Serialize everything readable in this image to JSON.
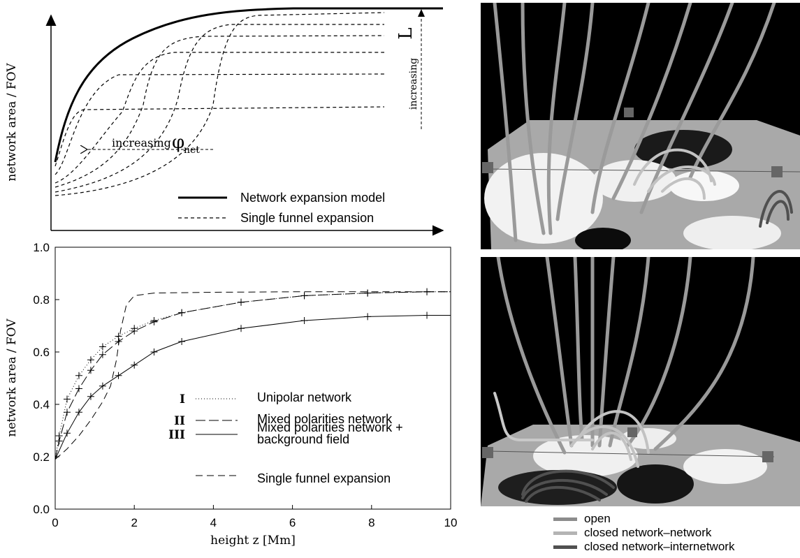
{
  "chart_data": [
    {
      "type": "line",
      "title": "",
      "xlabel": "",
      "ylabel": "network area / FOV",
      "annotations": [
        "L",
        "increasing",
        "increasing",
        "φ",
        "net"
      ],
      "legend_position": "bottom-right",
      "series": [
        {
          "name": "Network expansion model",
          "style": "solid-thick"
        },
        {
          "name": "Single funnel expansion",
          "style": "dashed"
        }
      ]
    },
    {
      "type": "line",
      "title": "",
      "xlabel": "height z [Mm]",
      "ylabel": "network area / FOV",
      "xlim": [
        0,
        10
      ],
      "ylim": [
        0.0,
        1.0
      ],
      "xticks": [
        "0",
        "2",
        "4",
        "6",
        "8",
        "10"
      ],
      "yticks": [
        "0.0",
        "0.2",
        "0.4",
        "0.6",
        "0.8",
        "1.0"
      ],
      "legend_position": "center-right",
      "series": [
        {
          "name": "Unipolar network",
          "tag": "I",
          "style": "dotted",
          "x": [
            0.0,
            0.1,
            0.3,
            0.6,
            0.9,
            1.2,
            1.6,
            2.0,
            2.5,
            3.2,
            4.7,
            6.3,
            7.9,
            9.4,
            10.0
          ],
          "y": [
            0.19,
            0.28,
            0.42,
            0.51,
            0.57,
            0.62,
            0.66,
            0.69,
            0.72,
            0.75,
            0.79,
            0.815,
            0.825,
            0.83,
            0.83
          ]
        },
        {
          "name": "Mixed polarities network",
          "tag": "II",
          "style": "long-dash",
          "x": [
            0.0,
            0.1,
            0.3,
            0.6,
            0.9,
            1.2,
            1.6,
            2.0,
            2.5,
            3.2,
            4.7,
            6.3,
            7.9,
            9.4,
            10.0
          ],
          "y": [
            0.19,
            0.26,
            0.37,
            0.46,
            0.53,
            0.59,
            0.64,
            0.68,
            0.715,
            0.75,
            0.79,
            0.815,
            0.825,
            0.83,
            0.83
          ]
        },
        {
          "name": "Mixed polarities network + background field",
          "tag": "III",
          "style": "solid",
          "x": [
            0.0,
            0.3,
            0.6,
            0.9,
            1.2,
            1.6,
            2.0,
            2.5,
            3.2,
            4.7,
            6.3,
            7.9,
            9.4,
            10.0
          ],
          "y": [
            0.19,
            0.29,
            0.37,
            0.43,
            0.47,
            0.51,
            0.55,
            0.6,
            0.64,
            0.69,
            0.72,
            0.735,
            0.74,
            0.74
          ]
        },
        {
          "name": "Single funnel expansion",
          "tag": "",
          "style": "dashed",
          "x": [
            0.0,
            0.3,
            0.6,
            0.9,
            1.2,
            1.4,
            1.55,
            1.65,
            1.8,
            2.0,
            2.5,
            4.0,
            6.0,
            8.0,
            10.0
          ],
          "y": [
            0.19,
            0.23,
            0.28,
            0.34,
            0.41,
            0.47,
            0.57,
            0.68,
            0.78,
            0.815,
            0.825,
            0.828,
            0.83,
            0.83,
            0.83
          ]
        }
      ]
    }
  ],
  "tube_legend": [
    {
      "label": "open",
      "color": "#8c8c8c"
    },
    {
      "label": "closed network–network",
      "color": "#b4b4b4"
    },
    {
      "label": "closed network–internetwork",
      "color": "#505050"
    }
  ]
}
